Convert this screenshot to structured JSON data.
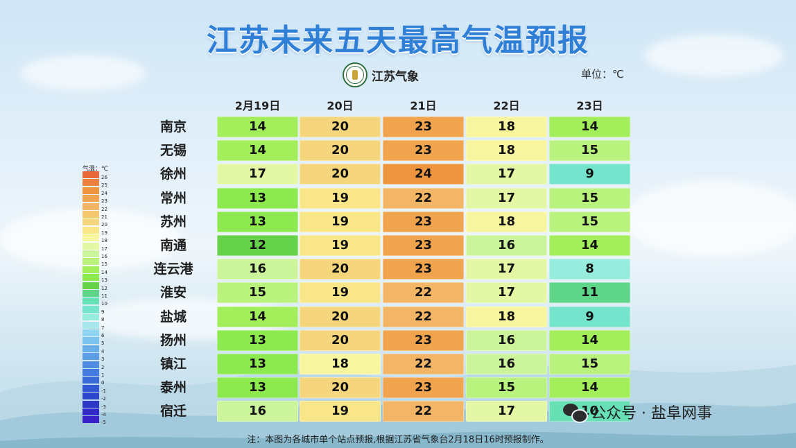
{
  "title": "江苏未来五天最高气温预报",
  "logo_text": "江苏气象",
  "unit_label": "单位：℃",
  "dates": [
    "2月19日",
    "20日",
    "21日",
    "22日",
    "23日"
  ],
  "rows": [
    {
      "city": "南京",
      "values": [
        14,
        20,
        23,
        18,
        14
      ]
    },
    {
      "city": "无锡",
      "values": [
        14,
        20,
        23,
        18,
        15
      ]
    },
    {
      "city": "徐州",
      "values": [
        17,
        20,
        24,
        17,
        9
      ]
    },
    {
      "city": "常州",
      "values": [
        13,
        19,
        22,
        17,
        15
      ]
    },
    {
      "city": "苏州",
      "values": [
        13,
        19,
        23,
        18,
        15
      ]
    },
    {
      "city": "南通",
      "values": [
        12,
        19,
        23,
        16,
        14
      ]
    },
    {
      "city": "连云港",
      "values": [
        16,
        20,
        23,
        17,
        8
      ]
    },
    {
      "city": "淮安",
      "values": [
        15,
        19,
        22,
        17,
        11
      ]
    },
    {
      "city": "盐城",
      "values": [
        14,
        20,
        22,
        18,
        9
      ]
    },
    {
      "city": "扬州",
      "values": [
        13,
        20,
        23,
        16,
        14
      ]
    },
    {
      "city": "镇江",
      "values": [
        13,
        18,
        22,
        16,
        15
      ]
    },
    {
      "city": "泰州",
      "values": [
        13,
        20,
        23,
        15,
        14
      ]
    },
    {
      "city": "宿迁",
      "values": [
        16,
        19,
        22,
        17,
        10
      ]
    }
  ],
  "legend": {
    "title": "气温：℃",
    "ticks": [
      26,
      25,
      24,
      23,
      22,
      21,
      20,
      19,
      18,
      17,
      16,
      15,
      14,
      13,
      12,
      11,
      10,
      9,
      8,
      7,
      6,
      5,
      4,
      3,
      2,
      1,
      0,
      -1,
      -2,
      -3,
      -4,
      -5
    ]
  },
  "colors": {
    "26": "#e8683a",
    "25": "#eb813f",
    "24": "#ee9540",
    "23": "#f1a44e",
    "22": "#f3b566",
    "21": "#f5c76f",
    "20": "#f6d67c",
    "19": "#f8e688",
    "18": "#f7f59d",
    "17": "#e4f7a4",
    "16": "#ccf59b",
    "15": "#b9f27c",
    "14": "#a3ef5b",
    "13": "#8ce94e",
    "12": "#66d24a",
    "11": "#5fd58a",
    "10": "#66e0b4",
    "9": "#74e4cd",
    "8": "#97ecdd",
    "7": "#a9e6ee",
    "6": "#8fd4f0",
    "5": "#7bc2ee",
    "4": "#68afea",
    "3": "#5b9ee6",
    "2": "#4f8de2",
    "1": "#437bde",
    "0": "#3a6ad8",
    "-1": "#3158d2",
    "-2": "#2d46cc",
    "-3": "#2b36c7",
    "-4": "#3028c6",
    "-5": "#3a20c8"
  },
  "note": "注：本图为各城市单个站点预报,根据江苏省气象台2月18日16时预报制作。",
  "watermark": "公众号 · 盐阜网事"
}
